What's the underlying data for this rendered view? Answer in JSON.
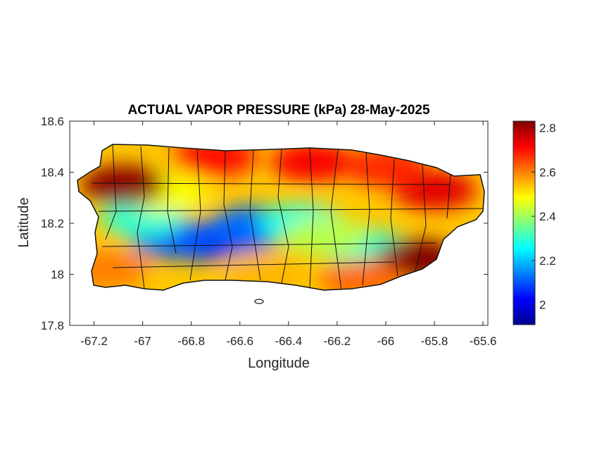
{
  "chart_data": {
    "type": "heatmap",
    "title": "ACTUAL VAPOR PRESSURE (kPa) 28-May-2025",
    "xlabel": "Longitude",
    "ylabel": "Latitude",
    "xlim": [
      -67.3,
      -65.58
    ],
    "ylim": [
      17.8,
      18.6
    ],
    "x_ticks": [
      -67.2,
      -67,
      -66.8,
      -66.6,
      -66.4,
      -66.2,
      -66,
      -65.8,
      -65.6
    ],
    "x_tick_labels": [
      "-67.2",
      "-67",
      "-66.8",
      "-66.6",
      "-66.4",
      "-66.2",
      "-66",
      "-65.8",
      "-65.6"
    ],
    "y_ticks": [
      17.8,
      18,
      18.2,
      18.4,
      18.6
    ],
    "y_tick_labels": [
      "17.8",
      "18",
      "18.2",
      "18.4",
      "18.6"
    ],
    "colormap": "jet",
    "colorbar": {
      "range": [
        1.91,
        2.83
      ],
      "ticks": [
        2,
        2.2,
        2.4,
        2.6,
        2.8
      ],
      "tick_labels": [
        "2",
        "2.2",
        "2.4",
        "2.6",
        "2.8"
      ]
    },
    "field_centers": [
      {
        "lon": -66.6,
        "lat": 18.16,
        "value": 2.0
      },
      {
        "lon": -66.75,
        "lat": 18.13,
        "value": 2.05
      },
      {
        "lon": -66.88,
        "lat": 18.14,
        "value": 2.1
      },
      {
        "lon": -66.55,
        "lat": 18.19,
        "value": 2.12
      },
      {
        "lon": -66.35,
        "lat": 18.2,
        "value": 2.28
      },
      {
        "lon": -66.08,
        "lat": 18.1,
        "value": 2.3
      },
      {
        "lon": -66.25,
        "lat": 18.15,
        "value": 2.42
      },
      {
        "lon": -67.0,
        "lat": 18.22,
        "value": 2.3
      },
      {
        "lon": -66.9,
        "lat": 18.32,
        "value": 2.48
      },
      {
        "lon": -66.3,
        "lat": 18.44,
        "value": 2.72
      },
      {
        "lon": -66.7,
        "lat": 18.46,
        "value": 2.7
      },
      {
        "lon": -67.08,
        "lat": 18.35,
        "value": 2.82
      },
      {
        "lon": -65.87,
        "lat": 18.06,
        "value": 2.83
      },
      {
        "lon": -65.8,
        "lat": 18.33,
        "value": 2.74
      },
      {
        "lon": -66.0,
        "lat": 18.42,
        "value": 2.68
      },
      {
        "lon": -66.1,
        "lat": 17.98,
        "value": 2.62
      },
      {
        "lon": -67.15,
        "lat": 18.02,
        "value": 2.6
      },
      {
        "lon": -66.5,
        "lat": 18.0,
        "value": 2.55
      }
    ]
  }
}
